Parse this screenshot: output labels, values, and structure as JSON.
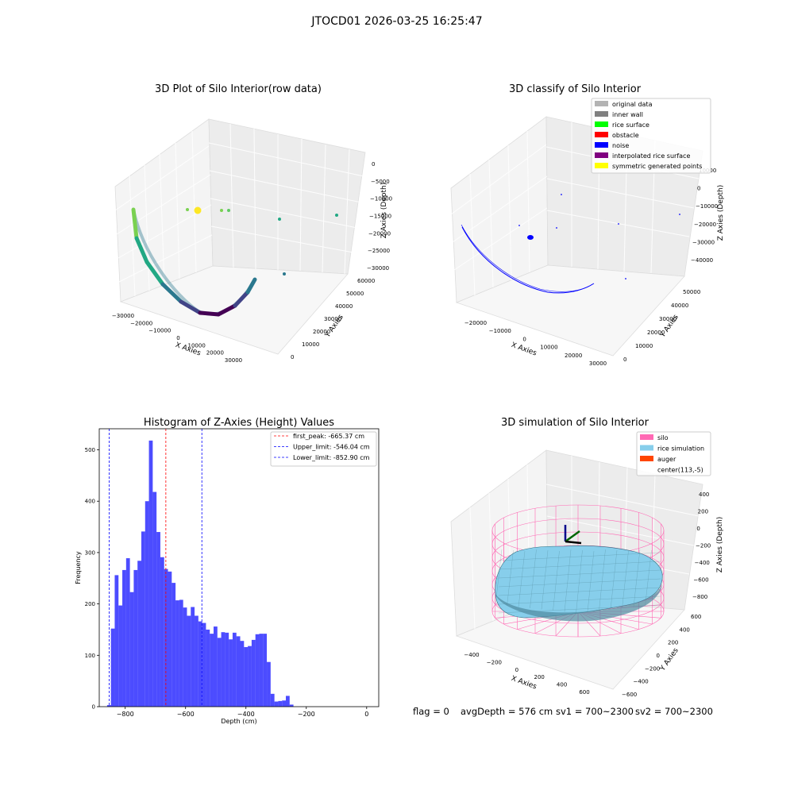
{
  "figure": {
    "suptitle": "JTOCD01 2026-03-25 16:25:47",
    "footer": {
      "flag": "flag = 0",
      "avg": "avgDepth = 576 cm",
      "sv1": "sv1 = 700~2300",
      "sv2": "sv2 = 700~2300"
    }
  },
  "chart_data": [
    {
      "type": "scatter",
      "projection": "3d",
      "title": "3D Plot of Silo Interior(row data)",
      "xlabel": "X Axies",
      "ylabel": "Y Axies",
      "zlabel": "Z Axies (Depth)",
      "x_ticks": [
        "−30000",
        "−20000",
        "−10000",
        "0",
        "10000",
        "20000",
        "30000"
      ],
      "y_ticks": [
        "0",
        "10000",
        "20000",
        "30000",
        "40000",
        "50000",
        "60000"
      ],
      "z_ticks": [
        "0",
        "−5000",
        "−10000",
        "−15000",
        "−20000",
        "−25000",
        "−30000"
      ],
      "colormap": "viridis",
      "colors": [
        "#fde725",
        "#7ad151",
        "#22a884",
        "#2a788e",
        "#414487",
        "#440154"
      ]
    },
    {
      "type": "scatter",
      "projection": "3d",
      "title": "3D classify of Silo Interior",
      "xlabel": "X Axies",
      "ylabel": "Y Axies",
      "zlabel": "Z Axies (Depth)",
      "x_ticks": [
        "−20000",
        "−10000",
        "0",
        "10000",
        "20000",
        "30000"
      ],
      "y_ticks": [
        "0",
        "10000",
        "20000",
        "30000",
        "40000",
        "50000"
      ],
      "z_ticks": [
        "10000",
        "0",
        "−10000",
        "−20000",
        "−30000",
        "−40000"
      ],
      "legend_position": "top-right",
      "legend": [
        {
          "label": "original data",
          "color": "#b3b3b3"
        },
        {
          "label": "inner wall",
          "color": "#808080"
        },
        {
          "label": "rice surface",
          "color": "#00ff00"
        },
        {
          "label": "obstacle",
          "color": "#ff0000"
        },
        {
          "label": "noise",
          "color": "#0000ff"
        },
        {
          "label": "interpolated rice surface",
          "color": "#800080"
        },
        {
          "label": "symmetric generated points",
          "color": "#ffff00"
        }
      ]
    },
    {
      "type": "bar",
      "title": "Histogram of Z-Axies (Height) Values",
      "xlabel": "Depth (cm)",
      "ylabel": "Frequency",
      "xlim": [
        -886,
        40
      ],
      "ylim": [
        0,
        541
      ],
      "x_ticks": [
        -800,
        -600,
        -400,
        -200,
        0
      ],
      "y_ticks": [
        0,
        100,
        200,
        300,
        400,
        500
      ],
      "bar_color": "#0000ff",
      "bar_opacity": 0.7,
      "bin_width": 12.6,
      "bin_start": -860,
      "values": [
        3,
        152,
        256,
        197,
        266,
        289,
        223,
        266,
        284,
        341,
        400,
        518,
        418,
        340,
        291,
        268,
        263,
        241,
        207,
        208,
        193,
        177,
        194,
        177,
        166,
        163,
        150,
        142,
        156,
        134,
        145,
        144,
        131,
        144,
        137,
        128,
        116,
        118,
        130,
        141,
        142,
        142,
        87,
        25,
        10,
        11,
        12,
        21,
        4
      ],
      "vlines": [
        {
          "value": -665.37,
          "color": "#ff0000",
          "label": "first_peak: -665.37 cm"
        },
        {
          "value": -546.04,
          "color": "#0000ff",
          "label": "Upper_limit: -546.04 cm"
        },
        {
          "value": -852.9,
          "color": "#0000ff",
          "label": "Lower_limit: -852.90 cm"
        }
      ],
      "legend_position": "top-right"
    },
    {
      "type": "surface",
      "projection": "3d",
      "title": "3D simulation of Silo Interior",
      "xlabel": "X Axies",
      "ylabel": "Y Axies",
      "zlabel": "Z Axies (Depth)",
      "x_ticks": [
        "−400",
        "−200",
        "0",
        "200",
        "400",
        "600"
      ],
      "y_ticks": [
        "−600",
        "−400",
        "−200",
        "0",
        "200",
        "400",
        "600"
      ],
      "z_ticks": [
        "400",
        "200",
        "0",
        "−200",
        "−400",
        "−600",
        "−800"
      ],
      "legend_position": "top-right",
      "legend": [
        {
          "label": "silo",
          "color": "#ff69b4"
        },
        {
          "label": "rice simulation",
          "color": "#87ceeb"
        },
        {
          "label": "auger",
          "color": "#ff4500"
        },
        {
          "label": "center(113,-5)",
          "color": ""
        }
      ]
    }
  ]
}
